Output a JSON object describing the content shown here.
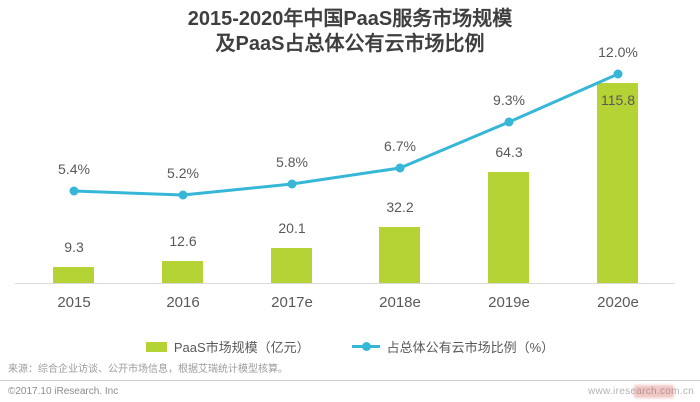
{
  "title": {
    "line1": "2015-2020年中国PaaS服务市场规模",
    "line2": "及PaaS占总体公有云市场比例"
  },
  "chart_data": {
    "type": "bar+line",
    "categories": [
      "2015",
      "2016",
      "2017e",
      "2018e",
      "2019e",
      "2020e"
    ],
    "series": [
      {
        "name": "PaaS市场规模（亿元）",
        "type": "bar",
        "values": [
          9.3,
          12.6,
          20.1,
          32.2,
          64.3,
          115.8
        ],
        "value_labels": [
          "9.3",
          "12.6",
          "20.1",
          "32.2",
          "64.3",
          "115.8"
        ],
        "color": "#b5d334"
      },
      {
        "name": "占总体公有云市场比例（%）",
        "type": "line",
        "values": [
          5.4,
          5.2,
          5.8,
          6.7,
          9.3,
          12.0
        ],
        "value_labels": [
          "5.4%",
          "5.2%",
          "5.8%",
          "6.7%",
          "9.3%",
          "12.0%"
        ],
        "color": "#36b7d8"
      }
    ],
    "title": "2015-2020年中国PaaS服务市场规模 及PaaS占总体公有云市场比例",
    "xlabel": "",
    "ylabel": "",
    "grid": false,
    "legend_position": "bottom",
    "value_labels_on": true,
    "last_bar_label_inside": true
  },
  "legend": {
    "bar_label": "PaaS市场规模（亿元）",
    "line_label": "占总体公有云市场比例（%）"
  },
  "footer": {
    "source": "来源：综合企业访谈、公开市场信息，根据艾瑞统计模型核算。",
    "copyright": "©2017.10 iResearch. Inc",
    "website": "www.iresearch.com.cn"
  },
  "colors": {
    "bar": "#b5d334",
    "line": "#36b7d8",
    "title_text": "#3f3f3f",
    "label_text": "#595959",
    "axis_line": "#d9d9d9"
  }
}
